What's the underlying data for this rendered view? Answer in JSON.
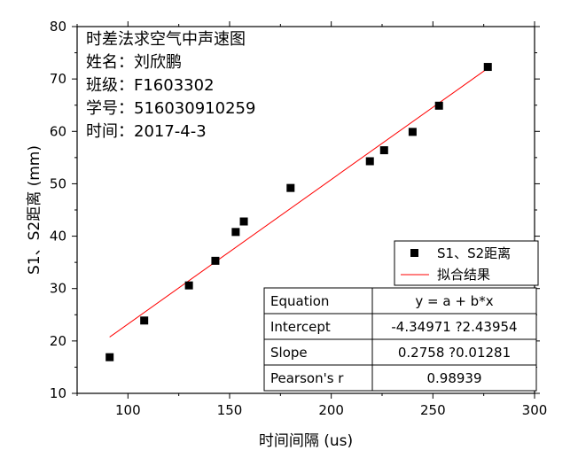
{
  "chart_data": {
    "type": "scatter",
    "xlabel": "时间间隔 (us)",
    "ylabel": "S1、S2距离 (mm)",
    "xlim": [
      75,
      300
    ],
    "ylim": [
      10,
      80
    ],
    "xticks": [
      100,
      150,
      200,
      250,
      300
    ],
    "yticks": [
      10,
      20,
      30,
      40,
      50,
      60,
      70,
      80
    ],
    "grid": false,
    "info_lines": [
      "时差法求空气中声速图",
      "姓名：刘欣鹏",
      "班级：F1603302",
      "学号：516030910259",
      "时间：2017-4-3"
    ],
    "series": [
      {
        "name": "S1、S2距离",
        "kind": "scatter",
        "color": "#000000",
        "x": [
          91,
          108,
          130,
          143,
          153,
          157,
          180,
          219,
          226,
          240,
          253,
          277
        ],
        "y": [
          16.9,
          23.9,
          30.6,
          35.3,
          40.8,
          42.8,
          49.2,
          54.3,
          56.4,
          59.9,
          64.9,
          72.3
        ]
      },
      {
        "name": "拟合结果",
        "kind": "line",
        "color": "#ff0000",
        "intercept": -4.34971,
        "slope": 0.2758,
        "x_range": [
          91,
          277
        ]
      }
    ],
    "legend": {
      "position": "right-middle",
      "entries": [
        "S1、S2距离",
        "拟合结果"
      ]
    },
    "stats_table": {
      "position": "bottom-right",
      "rows": [
        [
          "Equation",
          "y = a + b*x"
        ],
        [
          "Intercept",
          "-4.34971 ?2.43954"
        ],
        [
          "Slope",
          "0.2758 ?0.01281"
        ],
        [
          "Pearson's r",
          "0.98939"
        ]
      ]
    }
  }
}
